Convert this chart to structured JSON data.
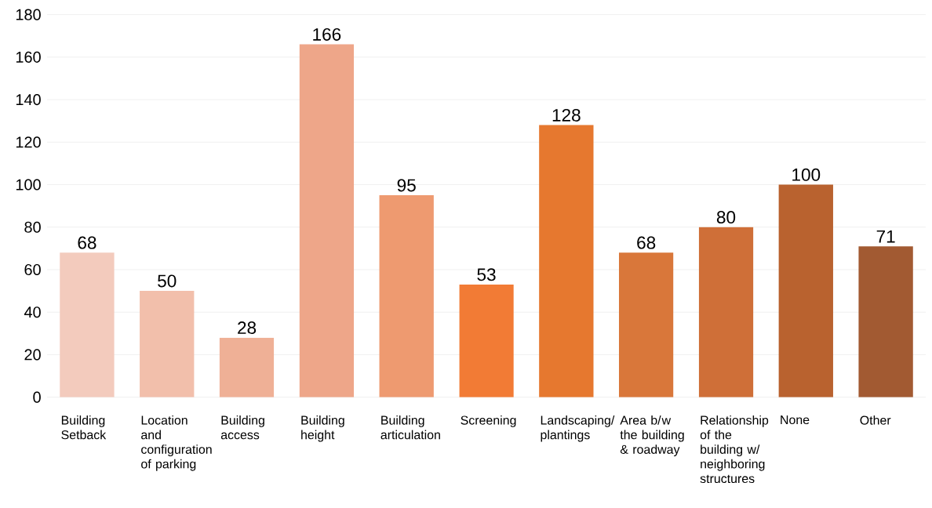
{
  "chart_data": {
    "type": "bar",
    "categories": [
      "Building Setback",
      "Location and configuration of parking",
      "Building access",
      "Building height",
      "Building articulation",
      "Screening",
      "Landscaping/plantings",
      "Area b/w the building & roadway",
      "Relationship of the building w/ neighboring structures",
      "None",
      "Other"
    ],
    "values": [
      68,
      50,
      28,
      166,
      95,
      53,
      128,
      68,
      80,
      100,
      71
    ],
    "colors": [
      "#f3cbbd",
      "#f2bfab",
      "#efb096",
      "#eea689",
      "#ee9a70",
      "#f27b35",
      "#e6782f",
      "#d9773a",
      "#cf6f38",
      "#b9622f",
      "#a25a32"
    ],
    "ylim": [
      0,
      180
    ],
    "yticks": [
      0,
      20,
      40,
      60,
      80,
      100,
      120,
      140,
      160,
      180
    ],
    "grid": "y",
    "data_labels": true
  }
}
